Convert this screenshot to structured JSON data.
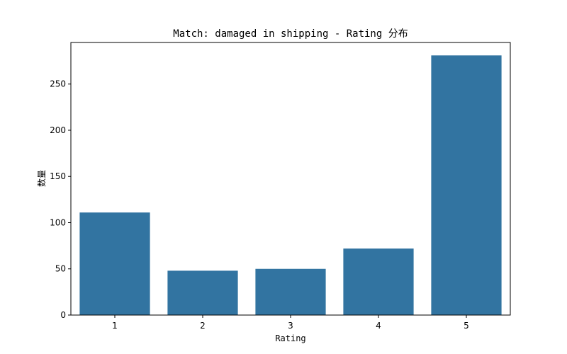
{
  "chart_data": {
    "type": "bar",
    "title": "Match: damaged in shipping - Rating 分布",
    "xlabel": "Rating",
    "ylabel": "数量",
    "categories": [
      "1",
      "2",
      "3",
      "4",
      "5"
    ],
    "values": [
      111,
      48,
      50,
      72,
      281
    ],
    "ylim": [
      0,
      295
    ],
    "yticks": [
      0,
      50,
      100,
      150,
      200,
      250
    ],
    "bar_color": "#3274a1",
    "grid": false,
    "legend": "none"
  }
}
